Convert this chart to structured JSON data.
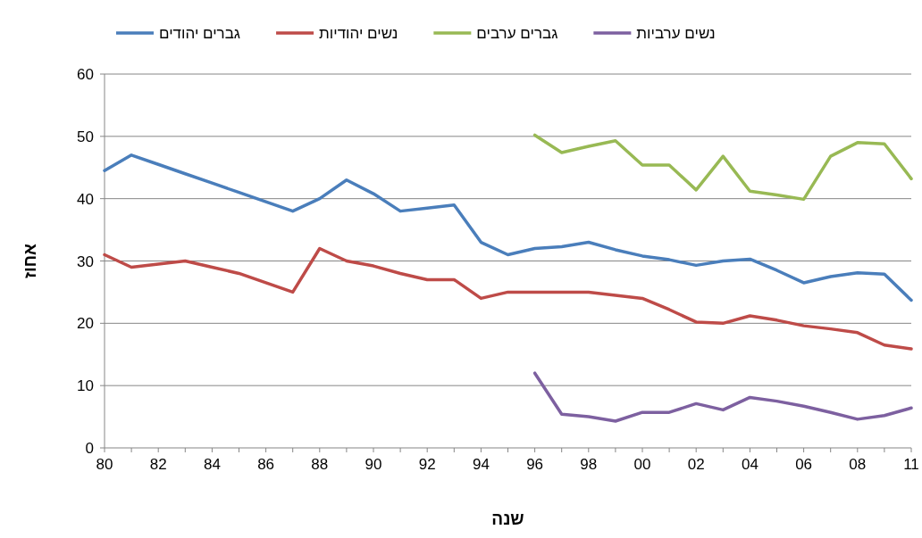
{
  "chart_data": {
    "type": "line",
    "xlabel": "שנה",
    "ylabel": "אחוז",
    "categories": [
      "80",
      null,
      "82",
      null,
      "84",
      null,
      "86",
      null,
      "88",
      null,
      "90",
      null,
      "92",
      null,
      "94",
      null,
      "96",
      null,
      "98",
      null,
      "00",
      null,
      "02",
      null,
      "04",
      null,
      "06",
      null,
      "08",
      null,
      "11"
    ],
    "ylim": [
      0,
      60
    ],
    "yticks": [
      0,
      10,
      20,
      30,
      40,
      50,
      60
    ],
    "grid": "y",
    "legend": "top",
    "marker": "none",
    "line_style": "solid",
    "series": [
      {
        "name": "גברים יהודים",
        "color": "#4a7ebb",
        "values": [
          44.5,
          47,
          45.5,
          44,
          42.5,
          41,
          39.5,
          38,
          40,
          43,
          40.8,
          38,
          38.5,
          39,
          33,
          31,
          32,
          32.3,
          33,
          31.8,
          30.8,
          30.2,
          29.3,
          30,
          30.3,
          28.5,
          26.5,
          27.5,
          28.1,
          27.9,
          23.7
        ]
      },
      {
        "name": "נשים יהודיות",
        "color": "#be4b48",
        "values": [
          31,
          29,
          29.5,
          30,
          29,
          28,
          26.5,
          25,
          32,
          30,
          29.2,
          28,
          27,
          27,
          24,
          25,
          25,
          25,
          25,
          24.5,
          24,
          22.2,
          20.2,
          20,
          21.2,
          20.5,
          19.6,
          19.1,
          18.5,
          16.5,
          15.9
        ]
      },
      {
        "name": "גברים ערבים",
        "color": "#98b954",
        "values": [
          null,
          null,
          null,
          null,
          null,
          null,
          null,
          null,
          null,
          null,
          null,
          null,
          null,
          null,
          null,
          null,
          50.2,
          47.4,
          48.4,
          49.3,
          45.4,
          45.4,
          41.4,
          46.8,
          41.2,
          40.6,
          39.9,
          46.8,
          49,
          48.8,
          43.2
        ]
      },
      {
        "name": "נשים ערביות",
        "color": "#7d60a0",
        "values": [
          null,
          null,
          null,
          null,
          null,
          null,
          null,
          null,
          null,
          null,
          null,
          null,
          null,
          null,
          null,
          null,
          12,
          5.4,
          5,
          4.3,
          5.7,
          5.7,
          7.1,
          6.1,
          8.1,
          7.5,
          6.7,
          5.7,
          4.6,
          5.2,
          6.4
        ]
      }
    ]
  }
}
